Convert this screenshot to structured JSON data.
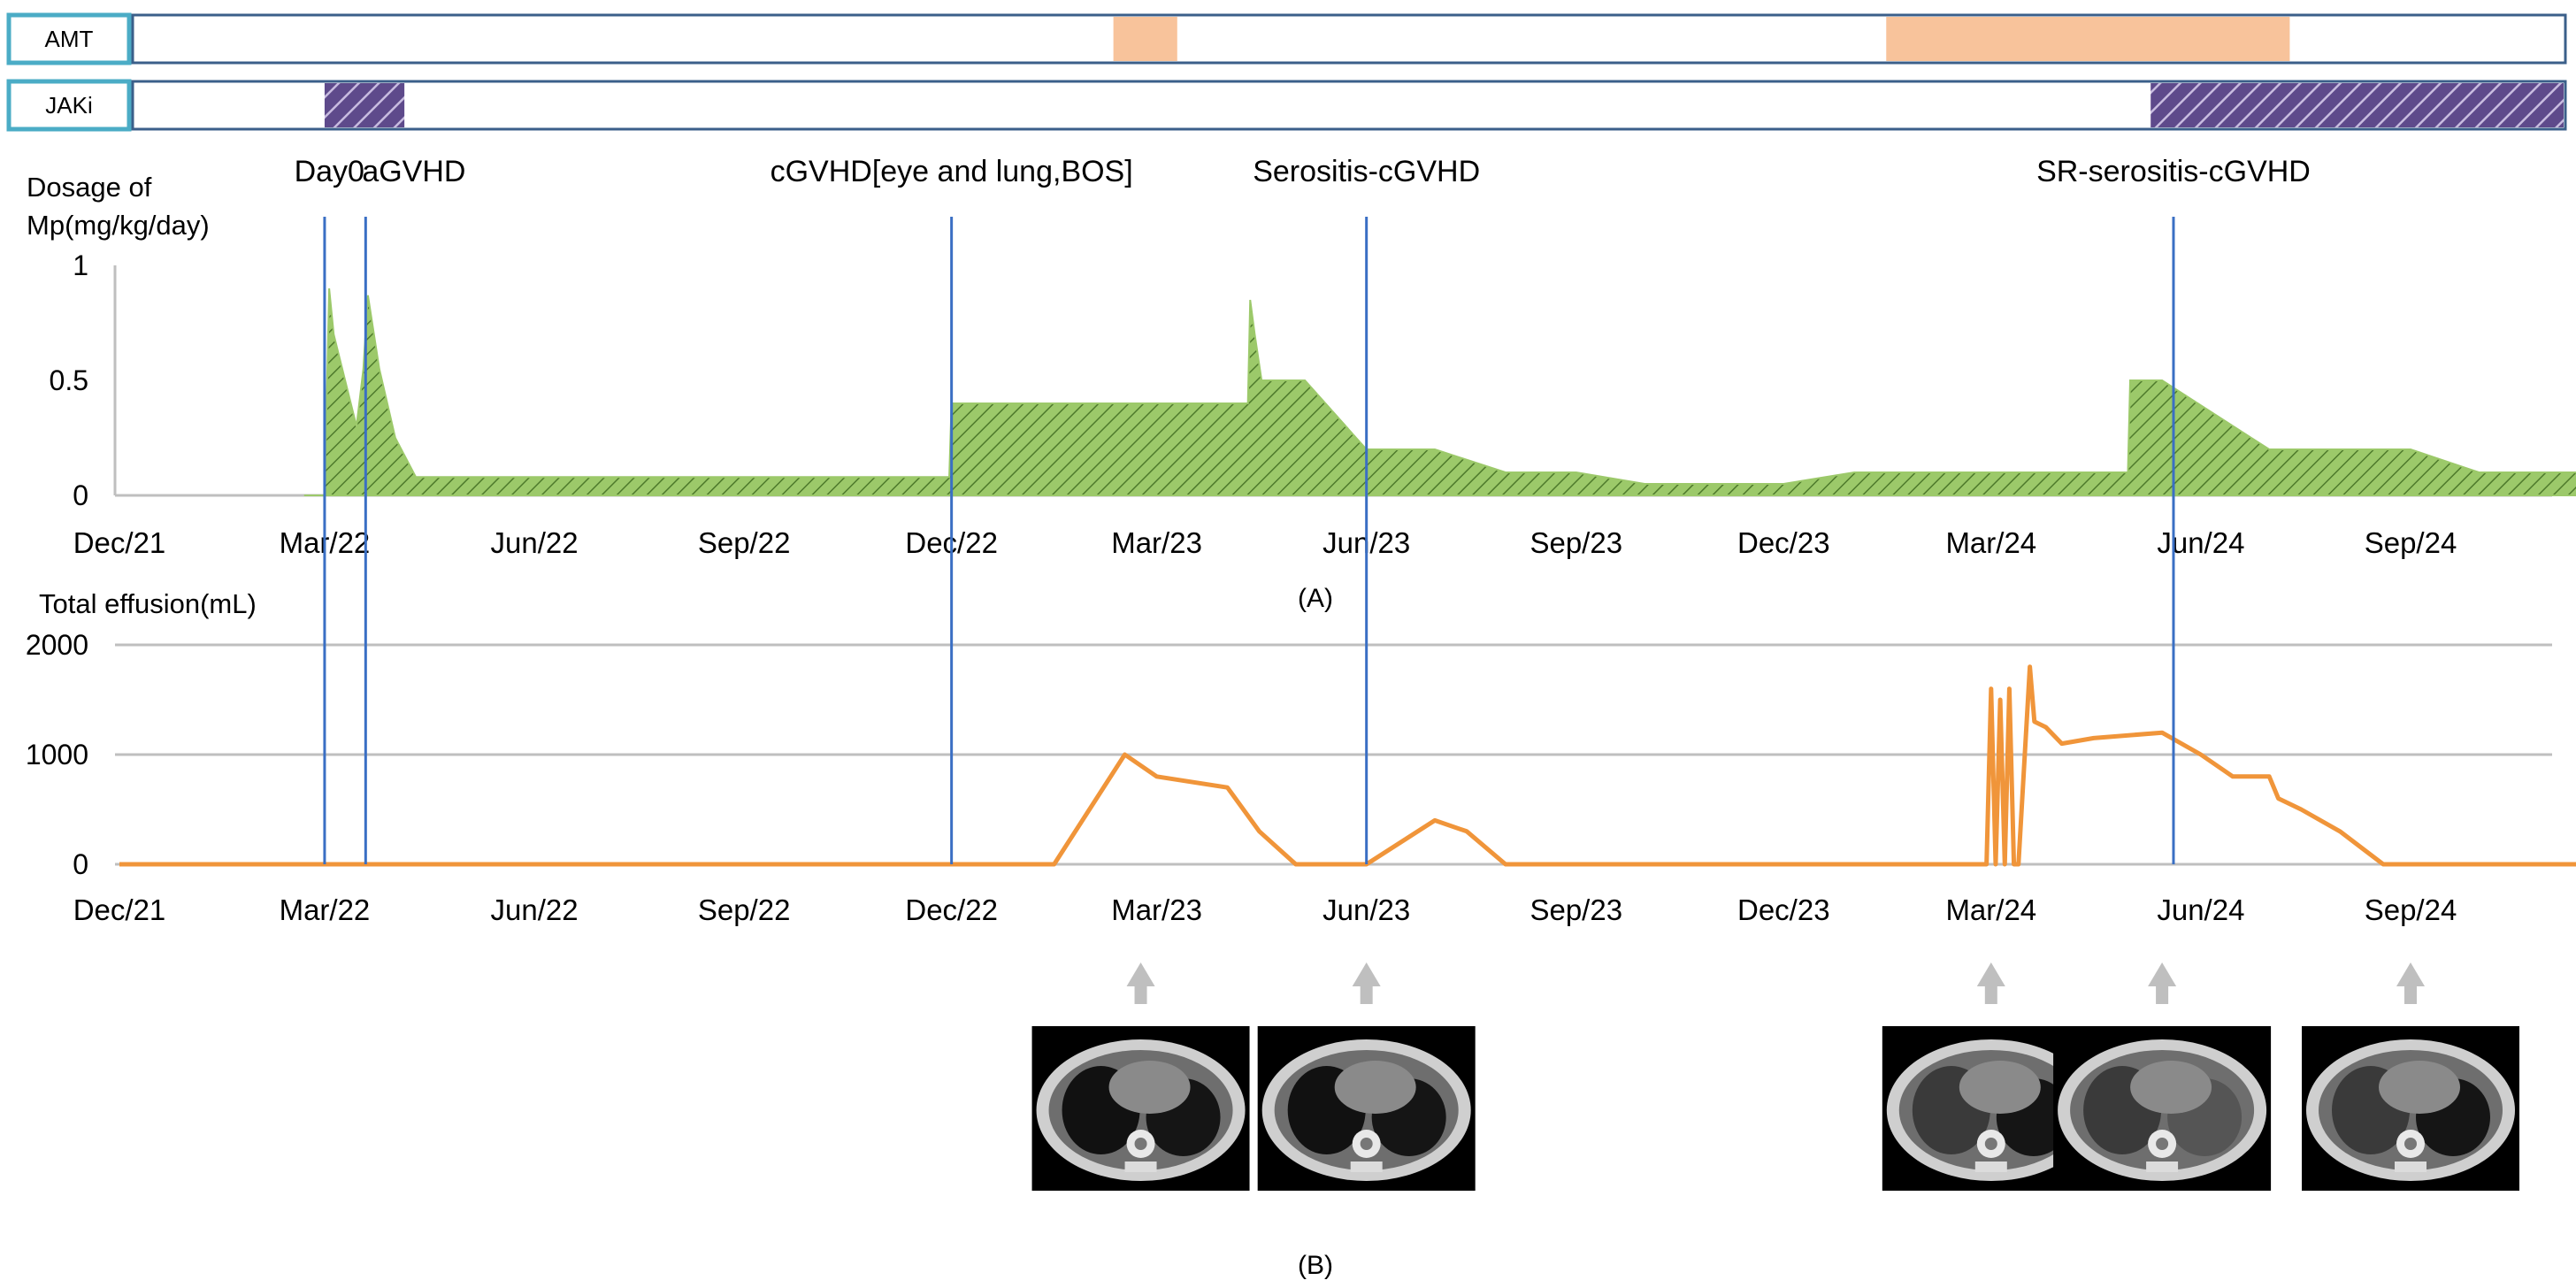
{
  "tracks": [
    {
      "label": "AMT",
      "color": "#F8C39B",
      "periods": [
        [
          "2023-02-10",
          "2023-03-10"
        ],
        [
          "2024-01-15",
          "2024-07-10"
        ]
      ]
    },
    {
      "label": "JAKi",
      "color": "#7B6A9E",
      "periods": [
        [
          "2022-03-01",
          "2022-04-05"
        ],
        [
          "2024-05-10",
          "2024-11-30"
        ]
      ]
    }
  ],
  "events": [
    {
      "label": "Day0",
      "date": "2022-03-01"
    },
    {
      "label": "aGVHD",
      "date": "2022-03-19"
    },
    {
      "label": "cGVHD[eye and lung,BOS]",
      "date": "2022-12-01"
    },
    {
      "label": "Serositis-cGVHD",
      "date": "2023-06-01"
    },
    {
      "label": "SR-serositis-cGVHD",
      "date": "2024-05-20"
    }
  ],
  "x_ticks": [
    "Dec/21",
    "Mar/22",
    "Jun/22",
    "Sep/22",
    "Dec/22",
    "Mar/23",
    "Jun/23",
    "Sep/23",
    "Dec/23",
    "Mar/24",
    "Jun/24",
    "Sep/24"
  ],
  "panel_labels": {
    "a": "(A)",
    "b": "(B)"
  },
  "arrow_color": "#BFBFBF",
  "ct_images": [
    {
      "date": "2023-02-22",
      "icon": "ct-chest-scan"
    },
    {
      "date": "2023-06-01",
      "icon": "ct-chest-scan"
    },
    {
      "date": "2024-03-01",
      "icon": "ct-chest-scan"
    },
    {
      "date": "2024-05-15",
      "icon": "ct-chest-scan"
    },
    {
      "date": "2024-09-01",
      "icon": "ct-chest-scan"
    }
  ],
  "chart_data": [
    {
      "type": "area",
      "ylabel": "Dosage of Mp(mg/kg/day)",
      "ylim": [
        0,
        1
      ],
      "yticks": [
        0,
        0.5,
        1
      ],
      "xlim": [
        "2021-12-01",
        "2024-12-01"
      ],
      "fill_color": "#92C25A",
      "x": [
        "2022-02-20",
        "2022-03-01",
        "2022-03-03",
        "2022-03-05",
        "2022-03-10",
        "2022-03-15",
        "2022-03-18",
        "2022-03-20",
        "2022-03-25",
        "2022-04-01",
        "2022-04-10",
        "2022-11-30",
        "2022-12-01",
        "2023-04-10",
        "2023-04-11",
        "2023-04-13",
        "2023-04-16",
        "2023-04-18",
        "2023-05-05",
        "2023-06-01",
        "2023-07-01",
        "2023-08-01",
        "2023-09-01",
        "2023-10-01",
        "2023-11-01",
        "2023-12-01",
        "2024-01-01",
        "2024-04-30",
        "2024-05-01",
        "2024-05-15",
        "2024-07-01",
        "2024-09-01",
        "2024-10-01",
        "2024-10-05",
        "2024-11-30"
      ],
      "y": [
        0,
        0,
        0.9,
        0.7,
        0.5,
        0.3,
        0.55,
        0.87,
        0.55,
        0.25,
        0.08,
        0.08,
        0.4,
        0.4,
        0.85,
        0.7,
        0.5,
        0.5,
        0.5,
        0.2,
        0.2,
        0.1,
        0.1,
        0.05,
        0.05,
        0.05,
        0.1,
        0.1,
        0.5,
        0.5,
        0.2,
        0.2,
        0.1,
        0.1,
        0.1
      ]
    },
    {
      "type": "line",
      "ylabel": "Total effusion(mL)",
      "ylim": [
        0,
        2000
      ],
      "yticks": [
        0,
        1000,
        2000
      ],
      "grid": true,
      "xlim": [
        "2021-12-01",
        "2024-12-01"
      ],
      "color": "#F0953A",
      "x": [
        "2021-12-01",
        "2023-01-15",
        "2023-02-15",
        "2023-03-01",
        "2023-04-01",
        "2023-04-15",
        "2023-05-01",
        "2023-05-15",
        "2023-06-01",
        "2023-07-01",
        "2023-07-15",
        "2023-08-01",
        "2024-02-28",
        "2024-03-01",
        "2024-03-03",
        "2024-03-05",
        "2024-03-07",
        "2024-03-09",
        "2024-03-11",
        "2024-03-13",
        "2024-03-18",
        "2024-03-20",
        "2024-03-25",
        "2024-04-01",
        "2024-04-15",
        "2024-05-15",
        "2024-06-01",
        "2024-06-15",
        "2024-07-01",
        "2024-07-05",
        "2024-07-15",
        "2024-08-01",
        "2024-08-20",
        "2024-11-30"
      ],
      "y": [
        0,
        0,
        1000,
        800,
        700,
        300,
        0,
        0,
        0,
        400,
        300,
        0,
        0,
        1600,
        0,
        1500,
        0,
        1600,
        0,
        0,
        1800,
        1300,
        1250,
        1100,
        1150,
        1200,
        1000,
        800,
        800,
        600,
        500,
        300,
        0,
        0
      ]
    }
  ]
}
